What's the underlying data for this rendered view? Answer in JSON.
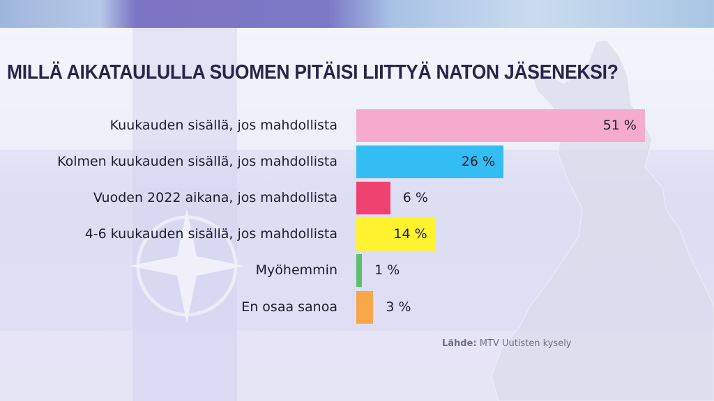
{
  "chart_data": {
    "type": "bar",
    "orientation": "horizontal",
    "title": "MILLÄ AIKATAULULLA SUOMEN PITÄISI LIITTYÄ NATON JÄSENEKSI?",
    "categories": [
      "Kuukauden sisällä, jos mahdollista",
      "Kolmen kuukauden sisällä, jos mahdollista",
      "Vuoden 2022 aikana, jos mahdollista",
      "4-6 kuukauden sisällä, jos mahdollista",
      "Myöhemmin",
      "En osaa sanoa"
    ],
    "values": [
      51,
      26,
      6,
      14,
      1,
      3
    ],
    "value_labels": [
      "51 %",
      "26 %",
      "6 %",
      "14 %",
      "1 %",
      "3 %"
    ],
    "colors": [
      "#f5abcd",
      "#33bdf2",
      "#ee4270",
      "#fff22e",
      "#5fbf6a",
      "#f8a64a"
    ],
    "unit": "%",
    "xlim": [
      0,
      51
    ],
    "grid": false,
    "source_label": "Lähde:",
    "source_text": "MTV Uutisten kysely"
  }
}
